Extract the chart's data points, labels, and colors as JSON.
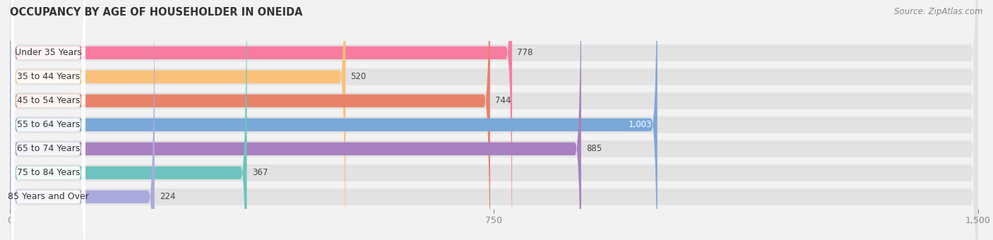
{
  "title": "OCCUPANCY BY AGE OF HOUSEHOLDER IN ONEIDA",
  "source": "Source: ZipAtlas.com",
  "categories": [
    "Under 35 Years",
    "35 to 44 Years",
    "45 to 54 Years",
    "55 to 64 Years",
    "65 to 74 Years",
    "75 to 84 Years",
    "85 Years and Over"
  ],
  "values": [
    778,
    520,
    744,
    1003,
    885,
    367,
    224
  ],
  "bar_colors": [
    "#F87BA0",
    "#F9C07A",
    "#E8836A",
    "#7AA8D8",
    "#A880C0",
    "#6DC4BE",
    "#AAAADD"
  ],
  "xlim": [
    0,
    1500
  ],
  "xticks": [
    0,
    750,
    1500
  ],
  "xticklabels": [
    "0",
    "750",
    "1,500"
  ],
  "background_color": "#f2f2f2",
  "bar_bg_color": "#e0e0e0",
  "row_bg_color": "#e8e8e8",
  "title_fontsize": 10.5,
  "source_fontsize": 8.5,
  "tick_fontsize": 9,
  "category_fontsize": 9,
  "value_fontsize": 8.5,
  "inside_label_threshold": 1003
}
